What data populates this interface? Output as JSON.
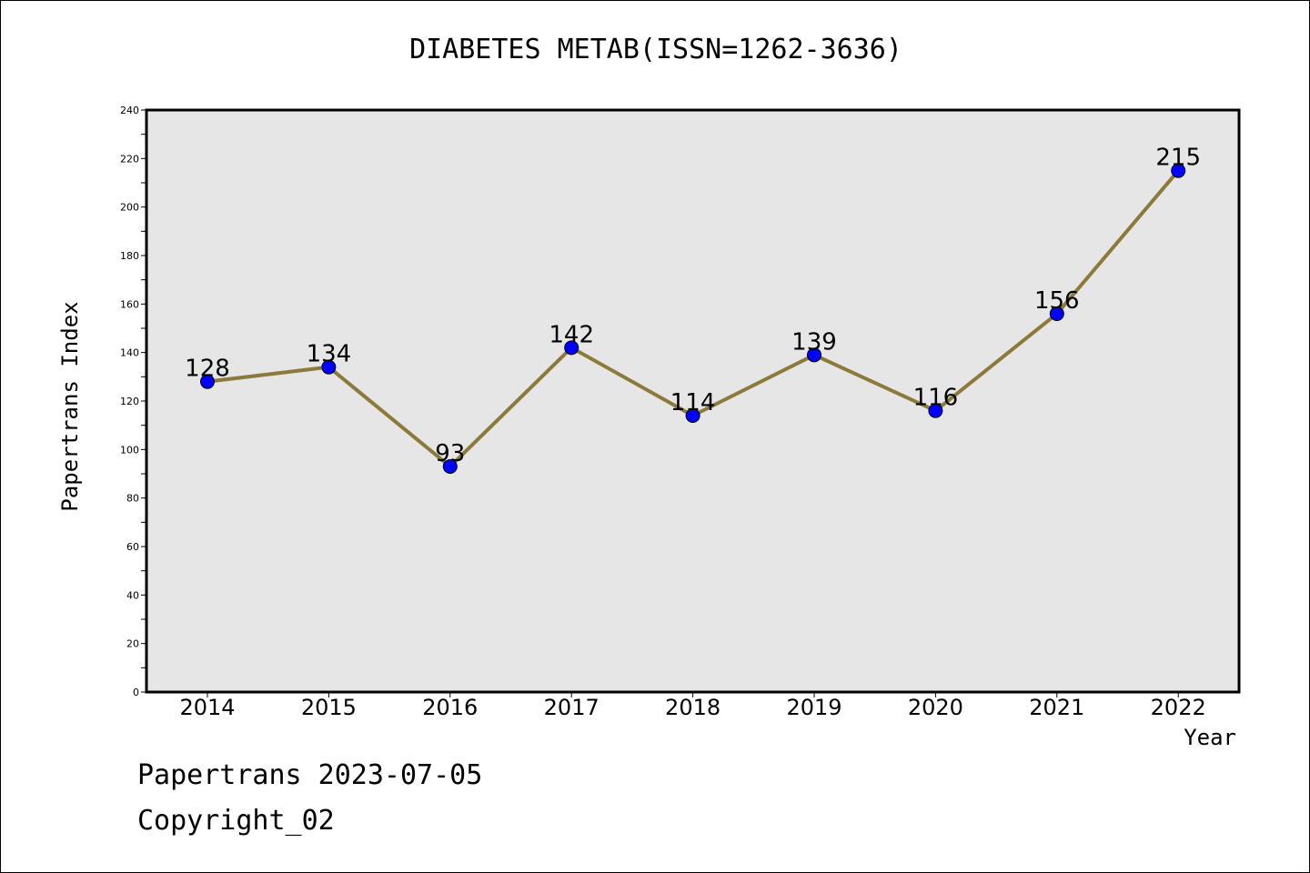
{
  "chart_data": {
    "type": "line",
    "title": "DIABETES METAB(ISSN=1262-3636)",
    "xlabel": "Year",
    "ylabel": "Papertrans Index",
    "categories": [
      "2014",
      "2015",
      "2016",
      "2017",
      "2018",
      "2019",
      "2020",
      "2021",
      "2022"
    ],
    "series": [
      {
        "values": [
          128,
          134,
          93,
          142,
          114,
          139,
          116,
          156,
          215
        ]
      }
    ],
    "data_labels": [
      "128",
      "134",
      "93",
      "142",
      "114",
      "139",
      "116",
      "156",
      "215"
    ],
    "ylim": [
      0,
      240
    ],
    "yticks": [
      0,
      20,
      40,
      60,
      80,
      100,
      120,
      140,
      160,
      180,
      200,
      220,
      240
    ],
    "ytick_labels": [
      "0",
      "20",
      "40",
      "60",
      "80",
      "100",
      "120",
      "140",
      "160",
      "180",
      "200",
      "220",
      "240"
    ],
    "grid": false,
    "colors": {
      "line": "#8b7a3a",
      "marker": "#0000ff",
      "plot_background": "#e6e6e6"
    }
  },
  "footer": {
    "date_line": "Papertrans 2023-07-05",
    "copyright": "Copyright_02"
  }
}
